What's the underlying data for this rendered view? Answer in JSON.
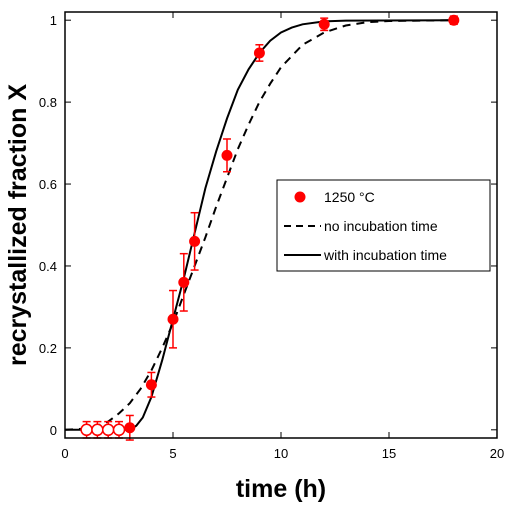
{
  "chart_data": {
    "type": "scatter",
    "xlabel": "time (h)",
    "ylabel": "recrystallized fraction X",
    "xlim": [
      0,
      20
    ],
    "ylim": [
      -0.02,
      1.02
    ],
    "x_ticks": [
      "0",
      "5",
      "10",
      "15",
      "20"
    ],
    "y_ticks": [
      "0",
      "0.2",
      "0.4",
      "0.6",
      "0.8",
      "1"
    ],
    "grid": false,
    "legend_position": "center-right",
    "colors": {
      "points": "#ff0000",
      "lines": "#000000"
    },
    "series": [
      {
        "name": "1250 °C",
        "kind": "markers",
        "points": [
          {
            "x": 3.0,
            "y": 0.005,
            "err": 0.03
          },
          {
            "x": 4.0,
            "y": 0.11,
            "err": 0.03
          },
          {
            "x": 5.0,
            "y": 0.27,
            "err": 0.07
          },
          {
            "x": 5.5,
            "y": 0.36,
            "err": 0.07
          },
          {
            "x": 6.0,
            "y": 0.46,
            "err": 0.07
          },
          {
            "x": 7.5,
            "y": 0.67,
            "err": 0.04
          },
          {
            "x": 9.0,
            "y": 0.92,
            "err": 0.02
          },
          {
            "x": 12.0,
            "y": 0.99,
            "err": 0.015
          },
          {
            "x": 18.0,
            "y": 1.0,
            "err": 0.01
          }
        ],
        "open_points": [
          {
            "x": 1.0,
            "y": 0.0,
            "err": 0.02
          },
          {
            "x": 1.5,
            "y": 0.0,
            "err": 0.02
          },
          {
            "x": 2.0,
            "y": 0.0,
            "err": 0.02
          },
          {
            "x": 2.5,
            "y": 0.0,
            "err": 0.02
          }
        ]
      },
      {
        "name": "no incubation time",
        "kind": "dashed-line",
        "points": [
          {
            "x": 0,
            "y": 0
          },
          {
            "x": 1,
            "y": 0.003
          },
          {
            "x": 1.5,
            "y": 0.01
          },
          {
            "x": 2,
            "y": 0.02
          },
          {
            "x": 2.5,
            "y": 0.04
          },
          {
            "x": 3,
            "y": 0.065
          },
          {
            "x": 3.5,
            "y": 0.1
          },
          {
            "x": 4,
            "y": 0.145
          },
          {
            "x": 4.5,
            "y": 0.2
          },
          {
            "x": 5,
            "y": 0.26
          },
          {
            "x": 5.5,
            "y": 0.33
          },
          {
            "x": 6,
            "y": 0.4
          },
          {
            "x": 6.5,
            "y": 0.47
          },
          {
            "x": 7,
            "y": 0.545
          },
          {
            "x": 7.5,
            "y": 0.615
          },
          {
            "x": 8,
            "y": 0.685
          },
          {
            "x": 8.5,
            "y": 0.745
          },
          {
            "x": 9,
            "y": 0.8
          },
          {
            "x": 9.5,
            "y": 0.845
          },
          {
            "x": 10,
            "y": 0.885
          },
          {
            "x": 11,
            "y": 0.94
          },
          {
            "x": 12,
            "y": 0.97
          },
          {
            "x": 13,
            "y": 0.987
          },
          {
            "x": 14,
            "y": 0.995
          },
          {
            "x": 15,
            "y": 0.998
          },
          {
            "x": 18,
            "y": 1.0
          }
        ]
      },
      {
        "name": "with incubation time",
        "kind": "solid-line",
        "points": [
          {
            "x": 0,
            "y": 0
          },
          {
            "x": 3,
            "y": 0.0
          },
          {
            "x": 3.3,
            "y": 0.01
          },
          {
            "x": 3.6,
            "y": 0.03
          },
          {
            "x": 4,
            "y": 0.08
          },
          {
            "x": 4.5,
            "y": 0.17
          },
          {
            "x": 5,
            "y": 0.27
          },
          {
            "x": 5.5,
            "y": 0.37
          },
          {
            "x": 6,
            "y": 0.48
          },
          {
            "x": 6.5,
            "y": 0.59
          },
          {
            "x": 7,
            "y": 0.68
          },
          {
            "x": 7.5,
            "y": 0.76
          },
          {
            "x": 8,
            "y": 0.83
          },
          {
            "x": 8.5,
            "y": 0.88
          },
          {
            "x": 9,
            "y": 0.92
          },
          {
            "x": 9.5,
            "y": 0.95
          },
          {
            "x": 10,
            "y": 0.97
          },
          {
            "x": 10.5,
            "y": 0.982
          },
          {
            "x": 11,
            "y": 0.99
          },
          {
            "x": 12,
            "y": 0.997
          },
          {
            "x": 13,
            "y": 0.999
          },
          {
            "x": 18,
            "y": 1.0
          }
        ]
      }
    ]
  }
}
